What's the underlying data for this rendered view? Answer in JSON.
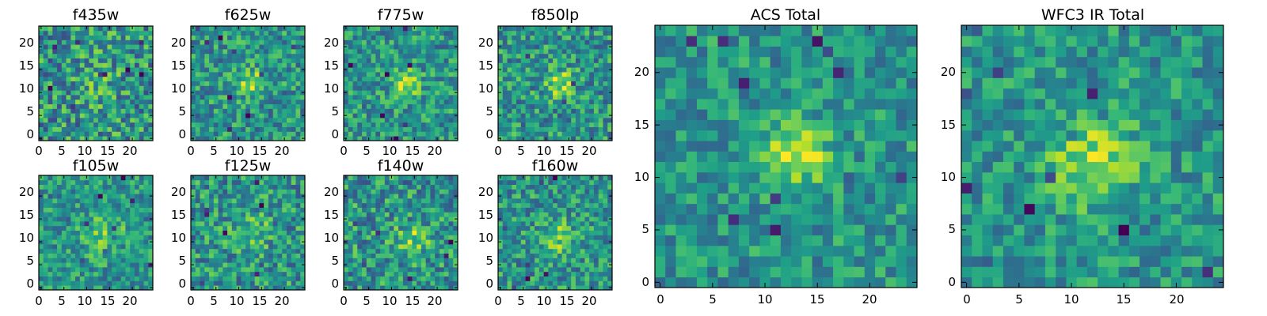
{
  "chart_data": [
    {
      "type": "heatmap",
      "panel": "f435w",
      "title": "f435w",
      "xlim": [
        -0.5,
        24.5
      ],
      "ylim": [
        -0.5,
        24.5
      ],
      "xticks": [
        "0",
        "5",
        "10",
        "15",
        "20"
      ],
      "yticks": [
        "0",
        "5",
        "10",
        "15",
        "20"
      ],
      "peak": [
        12,
        12
      ],
      "colormap": "viridis"
    },
    {
      "type": "heatmap",
      "panel": "f625w",
      "title": "f625w",
      "xlim": [
        -0.5,
        24.5
      ],
      "ylim": [
        -0.5,
        24.5
      ],
      "xticks": [
        "0",
        "5",
        "10",
        "15",
        "20"
      ],
      "yticks": [
        "0",
        "5",
        "10",
        "15",
        "20"
      ],
      "peak": [
        13,
        12
      ],
      "colormap": "viridis"
    },
    {
      "type": "heatmap",
      "panel": "f775w",
      "title": "f775w",
      "xlim": [
        -0.5,
        24.5
      ],
      "ylim": [
        -0.5,
        24.5
      ],
      "xticks": [
        "0",
        "5",
        "10",
        "15",
        "20"
      ],
      "yticks": [
        "0",
        "5",
        "10",
        "15",
        "20"
      ],
      "peak": [
        13,
        12
      ],
      "colormap": "viridis"
    },
    {
      "type": "heatmap",
      "panel": "f850lp",
      "title": "f850lp",
      "xlim": [
        -0.5,
        24.5
      ],
      "ylim": [
        -0.5,
        24.5
      ],
      "xticks": [
        "0",
        "5",
        "10",
        "15",
        "20"
      ],
      "yticks": [
        "0",
        "5",
        "10",
        "15",
        "20"
      ],
      "peak": [
        13,
        12
      ],
      "colormap": "viridis"
    },
    {
      "type": "heatmap",
      "panel": "f105w",
      "title": "f105w",
      "xlim": [
        -0.5,
        24.5
      ],
      "ylim": [
        -0.5,
        24.5
      ],
      "xticks": [
        "0",
        "5",
        "10",
        "15",
        "20"
      ],
      "yticks": [
        "0",
        "5",
        "10",
        "15",
        "20"
      ],
      "peak": [
        14,
        12
      ],
      "colormap": "viridis"
    },
    {
      "type": "heatmap",
      "panel": "f125w",
      "title": "f125w",
      "xlim": [
        -0.5,
        24.5
      ],
      "ylim": [
        -0.5,
        24.5
      ],
      "xticks": [
        "0",
        "5",
        "10",
        "15",
        "20"
      ],
      "yticks": [
        "0",
        "5",
        "10",
        "15",
        "20"
      ],
      "peak": [
        13,
        12
      ],
      "colormap": "viridis"
    },
    {
      "type": "heatmap",
      "panel": "f140w",
      "title": "f140w",
      "xlim": [
        -0.5,
        24.5
      ],
      "ylim": [
        -0.5,
        24.5
      ],
      "xticks": [
        "0",
        "5",
        "10",
        "15",
        "20"
      ],
      "yticks": [
        "0",
        "5",
        "10",
        "15",
        "20"
      ],
      "peak": [
        15,
        11
      ],
      "colormap": "viridis"
    },
    {
      "type": "heatmap",
      "panel": "f160w",
      "title": "f160w",
      "xlim": [
        -0.5,
        24.5
      ],
      "ylim": [
        -0.5,
        24.5
      ],
      "xticks": [
        "0",
        "5",
        "10",
        "15",
        "20"
      ],
      "yticks": [
        "0",
        "5",
        "10",
        "15",
        "20"
      ],
      "peak": [
        12,
        11
      ],
      "colormap": "viridis"
    },
    {
      "type": "heatmap",
      "panel": "acs-total",
      "title": "ACS Total",
      "xlim": [
        -0.5,
        24.5
      ],
      "ylim": [
        -0.5,
        24.5
      ],
      "xticks": [
        "0",
        "5",
        "10",
        "15",
        "20"
      ],
      "yticks": [
        "0",
        "5",
        "10",
        "15",
        "20"
      ],
      "peak": [
        13,
        12
      ],
      "colormap": "viridis"
    },
    {
      "type": "heatmap",
      "panel": "wfc3-ir-total",
      "title": "WFC3 IR Total",
      "xlim": [
        -0.5,
        24.5
      ],
      "ylim": [
        -0.5,
        24.5
      ],
      "xticks": [
        "0",
        "5",
        "10",
        "15",
        "20"
      ],
      "yticks": [
        "0",
        "5",
        "10",
        "15",
        "20"
      ],
      "peak": [
        12,
        12
      ],
      "colormap": "viridis"
    }
  ]
}
